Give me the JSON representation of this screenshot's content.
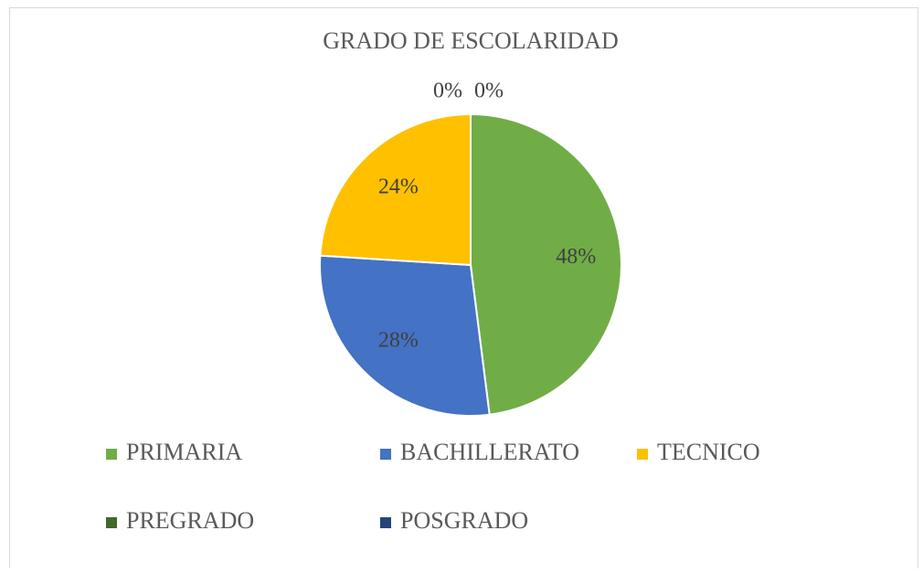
{
  "chart_data": {
    "type": "pie",
    "title": "GRADO DE ESCOLARIDAD",
    "categories": [
      "PRIMARIA",
      "BACHILLERATO",
      "TECNICO",
      "PREGRADO",
      "POSGRADO"
    ],
    "values": [
      48,
      28,
      24,
      0,
      0
    ],
    "value_labels": [
      "48%",
      "28%",
      "24%",
      "0%",
      "0%"
    ],
    "colors": [
      "#70ad47",
      "#4472c4",
      "#ffc000",
      "#43682b",
      "#264478"
    ],
    "legend": "bottom"
  }
}
